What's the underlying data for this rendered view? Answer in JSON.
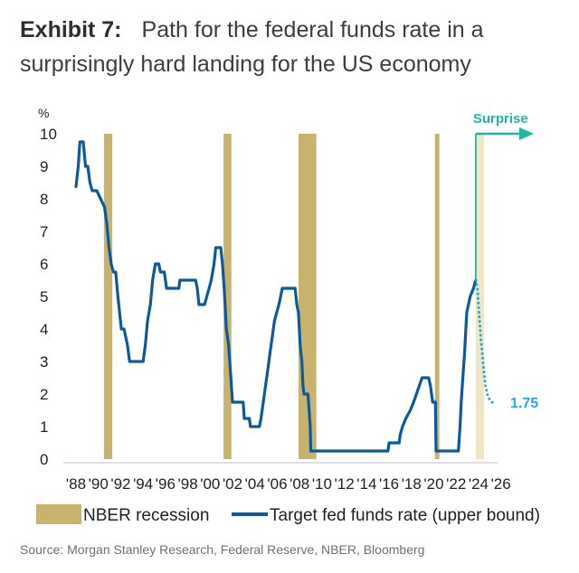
{
  "header": {
    "exhibit": "Exhibit 7:",
    "title_line1": "Path for the federal funds rate in a",
    "title_line2": "surprisingly hard landing for the US economy"
  },
  "chart_data": {
    "type": "line",
    "title": "Path for the federal funds rate in a surprisingly hard landing for the US economy",
    "ylabel": "%",
    "xlabel": "",
    "ylim": [
      0,
      10
    ],
    "xlim": [
      1988,
      2027
    ],
    "yticks": [
      0,
      1,
      2,
      3,
      4,
      5,
      6,
      7,
      8,
      9,
      10
    ],
    "xticks": [
      {
        "year": 1988,
        "label": "'88"
      },
      {
        "year": 1990,
        "label": "'90"
      },
      {
        "year": 1992,
        "label": "'92"
      },
      {
        "year": 1994,
        "label": "'94"
      },
      {
        "year": 1996,
        "label": "'96"
      },
      {
        "year": 1998,
        "label": "'98"
      },
      {
        "year": 2000,
        "label": "'00"
      },
      {
        "year": 2002,
        "label": "'02"
      },
      {
        "year": 2004,
        "label": "'04"
      },
      {
        "year": 2006,
        "label": "'06"
      },
      {
        "year": 2008,
        "label": "'08"
      },
      {
        "year": 2010,
        "label": "'10"
      },
      {
        "year": 2012,
        "label": "'12"
      },
      {
        "year": 2014,
        "label": "'14"
      },
      {
        "year": 2016,
        "label": "'16"
      },
      {
        "year": 2018,
        "label": "'18"
      },
      {
        "year": 2020,
        "label": "'20"
      },
      {
        "year": 2022,
        "label": "'22"
      },
      {
        "year": 2024,
        "label": "'24"
      },
      {
        "year": 2026,
        "label": "'26"
      }
    ],
    "recessions": [
      {
        "start": 1990.5,
        "end": 1991.25
      },
      {
        "start": 2001.2,
        "end": 2001.9
      },
      {
        "start": 2007.9,
        "end": 2009.5
      },
      {
        "start": 2020.1,
        "end": 2020.5
      }
    ],
    "scenario_band": {
      "start": 2023.75,
      "end": 2024.5,
      "color": "#eee6c6"
    },
    "series": [
      {
        "name": "Target fed funds rate (upper bound)",
        "style": "solid",
        "color": "#0e5a99",
        "points": [
          [
            1988.0,
            8.375
          ],
          [
            1988.2,
            9.0
          ],
          [
            1988.35,
            9.75
          ],
          [
            1988.65,
            9.75
          ],
          [
            1988.85,
            9.0
          ],
          [
            1989.05,
            9.0
          ],
          [
            1989.25,
            8.5
          ],
          [
            1989.45,
            8.25
          ],
          [
            1989.85,
            8.25
          ],
          [
            1990.2,
            8.0
          ],
          [
            1990.55,
            7.75
          ],
          [
            1990.75,
            7.25
          ],
          [
            1990.95,
            6.5
          ],
          [
            1991.15,
            6.0
          ],
          [
            1991.35,
            5.75
          ],
          [
            1991.55,
            5.75
          ],
          [
            1991.75,
            5.0
          ],
          [
            1991.9,
            4.5
          ],
          [
            1992.05,
            4.0
          ],
          [
            1992.3,
            4.0
          ],
          [
            1992.6,
            3.5
          ],
          [
            1992.8,
            3.0
          ],
          [
            1993.0,
            3.0
          ],
          [
            1994.0,
            3.0
          ],
          [
            1994.2,
            3.5
          ],
          [
            1994.4,
            4.25
          ],
          [
            1994.65,
            4.75
          ],
          [
            1994.85,
            5.5
          ],
          [
            1995.1,
            6.0
          ],
          [
            1995.4,
            6.0
          ],
          [
            1995.55,
            5.75
          ],
          [
            1995.9,
            5.75
          ],
          [
            1996.1,
            5.25
          ],
          [
            1997.2,
            5.25
          ],
          [
            1997.3,
            5.5
          ],
          [
            1998.7,
            5.5
          ],
          [
            1998.85,
            5.25
          ],
          [
            1999.0,
            4.75
          ],
          [
            1999.5,
            4.75
          ],
          [
            1999.7,
            5.0
          ],
          [
            1999.9,
            5.25
          ],
          [
            2000.1,
            5.5
          ],
          [
            2000.35,
            6.0
          ],
          [
            2000.5,
            6.5
          ],
          [
            2000.95,
            6.5
          ],
          [
            2001.1,
            6.0
          ],
          [
            2001.25,
            5.25
          ],
          [
            2001.45,
            4.0
          ],
          [
            2001.65,
            3.5
          ],
          [
            2001.85,
            2.5
          ],
          [
            2002.0,
            1.75
          ],
          [
            2002.95,
            1.75
          ],
          [
            2003.05,
            1.25
          ],
          [
            2003.5,
            1.25
          ],
          [
            2003.6,
            1.0
          ],
          [
            2004.4,
            1.0
          ],
          [
            2004.55,
            1.25
          ],
          [
            2004.75,
            1.75
          ],
          [
            2004.95,
            2.25
          ],
          [
            2005.15,
            2.75
          ],
          [
            2005.35,
            3.25
          ],
          [
            2005.55,
            3.75
          ],
          [
            2005.75,
            4.25
          ],
          [
            2005.95,
            4.5
          ],
          [
            2006.15,
            4.75
          ],
          [
            2006.3,
            5.0
          ],
          [
            2006.45,
            5.25
          ],
          [
            2007.6,
            5.25
          ],
          [
            2007.75,
            4.75
          ],
          [
            2007.9,
            4.5
          ],
          [
            2008.05,
            3.5
          ],
          [
            2008.2,
            3.0
          ],
          [
            2008.3,
            2.25
          ],
          [
            2008.4,
            2.0
          ],
          [
            2008.75,
            2.0
          ],
          [
            2008.85,
            1.5
          ],
          [
            2008.95,
            1.0
          ],
          [
            2009.0,
            0.25
          ],
          [
            2015.9,
            0.25
          ],
          [
            2016.0,
            0.5
          ],
          [
            2016.9,
            0.5
          ],
          [
            2017.0,
            0.75
          ],
          [
            2017.2,
            1.0
          ],
          [
            2017.5,
            1.25
          ],
          [
            2017.9,
            1.5
          ],
          [
            2018.2,
            1.75
          ],
          [
            2018.45,
            2.0
          ],
          [
            2018.7,
            2.25
          ],
          [
            2018.95,
            2.5
          ],
          [
            2019.55,
            2.5
          ],
          [
            2019.7,
            2.25
          ],
          [
            2019.8,
            2.0
          ],
          [
            2019.9,
            1.75
          ],
          [
            2020.15,
            1.75
          ],
          [
            2020.2,
            0.25
          ],
          [
            2022.2,
            0.25
          ],
          [
            2022.35,
            1.0
          ],
          [
            2022.45,
            1.75
          ],
          [
            2022.6,
            2.5
          ],
          [
            2022.75,
            3.25
          ],
          [
            2022.95,
            4.5
          ],
          [
            2023.1,
            4.75
          ],
          [
            2023.25,
            5.0
          ],
          [
            2023.55,
            5.25
          ],
          [
            2023.75,
            5.5
          ]
        ]
      },
      {
        "name": "Surprise path",
        "style": "dotted",
        "color": "#2ba7d8",
        "points": [
          [
            2023.75,
            5.5
          ],
          [
            2023.9,
            5.25
          ],
          [
            2024.05,
            4.5
          ],
          [
            2024.2,
            3.75
          ],
          [
            2024.4,
            3.0
          ],
          [
            2024.6,
            2.3
          ],
          [
            2024.85,
            1.9
          ],
          [
            2025.2,
            1.75
          ],
          [
            2025.6,
            1.75
          ]
        ]
      }
    ],
    "annotations": [
      {
        "text": "Surprise",
        "color": "#1fb5a0",
        "arrow_year": 2023.75
      },
      {
        "text": "1.75",
        "color": "#2ba7d8",
        "value": 1.75
      }
    ],
    "legend": [
      {
        "label": "NBER recession",
        "kind": "swatch",
        "color": "#c8b36e"
      },
      {
        "label": "Target fed funds rate (upper bound)",
        "kind": "line",
        "color": "#0e5a99"
      }
    ],
    "legend_position": "bottom"
  },
  "footer": {
    "source": "Source: Morgan Stanley Research, Federal Reserve, NBER, Bloomberg"
  }
}
